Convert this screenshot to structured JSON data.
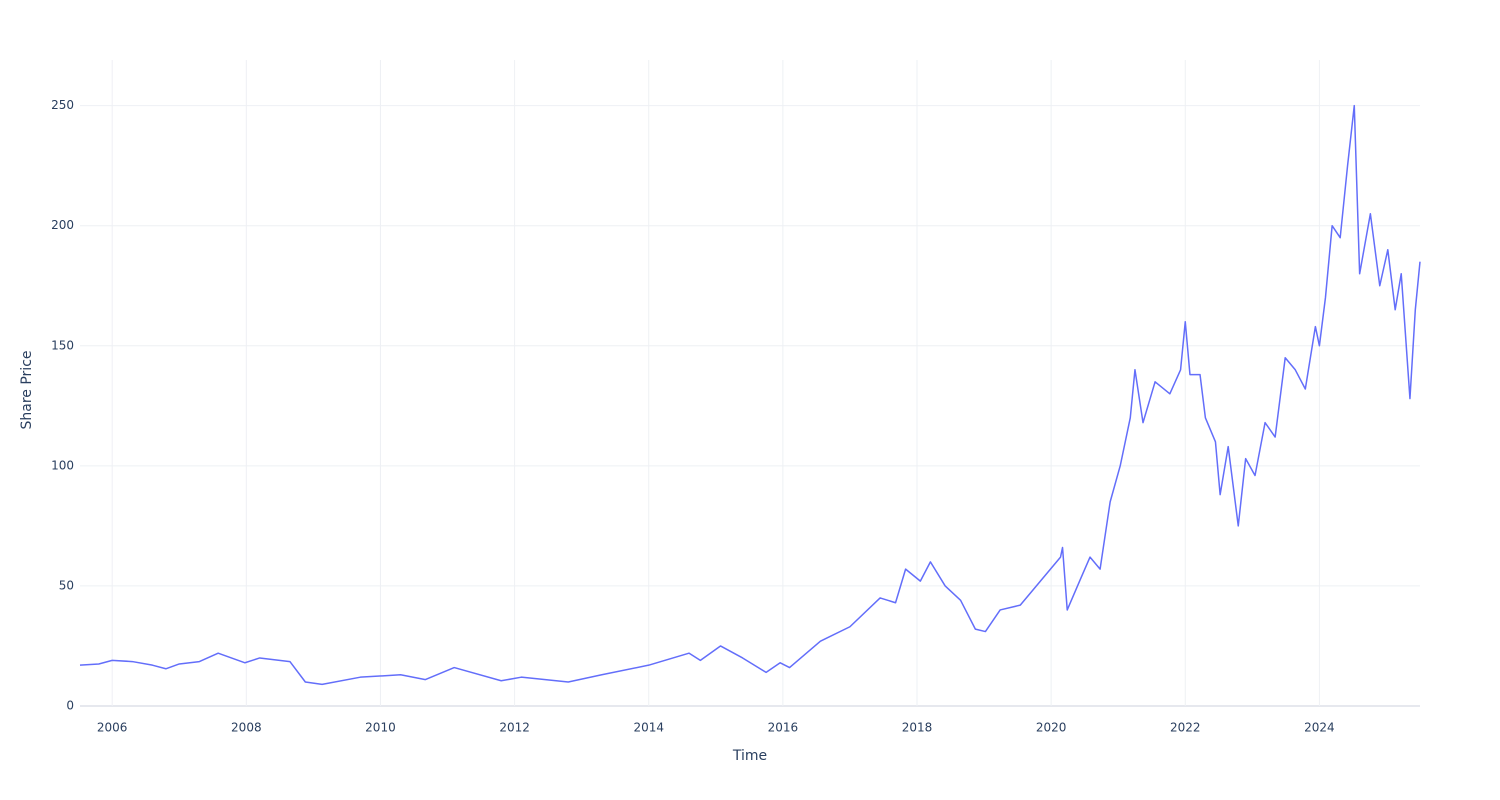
{
  "chart_data": {
    "type": "line",
    "x_label": "Time",
    "y_label": "Share Price",
    "xlim": [
      2005.52,
      2025.5
    ],
    "ylim": [
      0,
      269
    ],
    "xticks": [
      2006,
      2008,
      2010,
      2012,
      2014,
      2016,
      2018,
      2020,
      2022,
      2024
    ],
    "yticks": [
      0,
      50,
      100,
      150,
      200,
      250
    ],
    "grid": true,
    "series": [
      {
        "color": "#636efa",
        "x": [
          2005.52,
          2005.8,
          2006.0,
          2006.3,
          2006.6,
          2006.8,
          2007.0,
          2007.3,
          2007.58,
          2007.98,
          2008.2,
          2008.65,
          2008.88,
          2009.13,
          2009.7,
          2010.3,
          2010.67,
          2011.1,
          2011.8,
          2012.1,
          2012.8,
          2013.3,
          2014.0,
          2014.6,
          2014.77,
          2015.07,
          2015.4,
          2015.75,
          2015.96,
          2016.1,
          2016.56,
          2017.0,
          2017.45,
          2017.68,
          2017.83,
          2018.05,
          2018.2,
          2018.42,
          2018.65,
          2018.87,
          2019.02,
          2019.24,
          2019.54,
          2019.84,
          2020.14,
          2020.17,
          2020.24,
          2020.44,
          2020.58,
          2020.73,
          2020.88,
          2021.03,
          2021.18,
          2021.25,
          2021.37,
          2021.55,
          2021.77,
          2021.93,
          2022.0,
          2022.07,
          2022.22,
          2022.3,
          2022.45,
          2022.52,
          2022.64,
          2022.79,
          2022.9,
          2023.04,
          2023.19,
          2023.34,
          2023.49,
          2023.64,
          2023.79,
          2023.94,
          2024.0,
          2024.09,
          2024.19,
          2024.31,
          2024.42,
          2024.52,
          2024.6,
          2024.76,
          2024.9,
          2025.02,
          2025.13,
          2025.22,
          2025.35,
          2025.43,
          2025.5
        ],
        "values": [
          17,
          17.5,
          19,
          18.5,
          17,
          15.5,
          17.5,
          18.5,
          22,
          18,
          20,
          18.5,
          10,
          9,
          12,
          13,
          11,
          16,
          10.5,
          12,
          10,
          13,
          17,
          22,
          19,
          25,
          20,
          14,
          18,
          16,
          27,
          33,
          45,
          43,
          57,
          52,
          60,
          50,
          44,
          32,
          31,
          40,
          42,
          52,
          62,
          66,
          40,
          53,
          62,
          57,
          85,
          100,
          120,
          140,
          118,
          135,
          130,
          140,
          160,
          138,
          138,
          120,
          110,
          88,
          108,
          75,
          103,
          96,
          118,
          112,
          145,
          140,
          132,
          158,
          150,
          170,
          200,
          195,
          225,
          250,
          180,
          205,
          175,
          190,
          165,
          180,
          128,
          165,
          185
        ]
      }
    ]
  }
}
